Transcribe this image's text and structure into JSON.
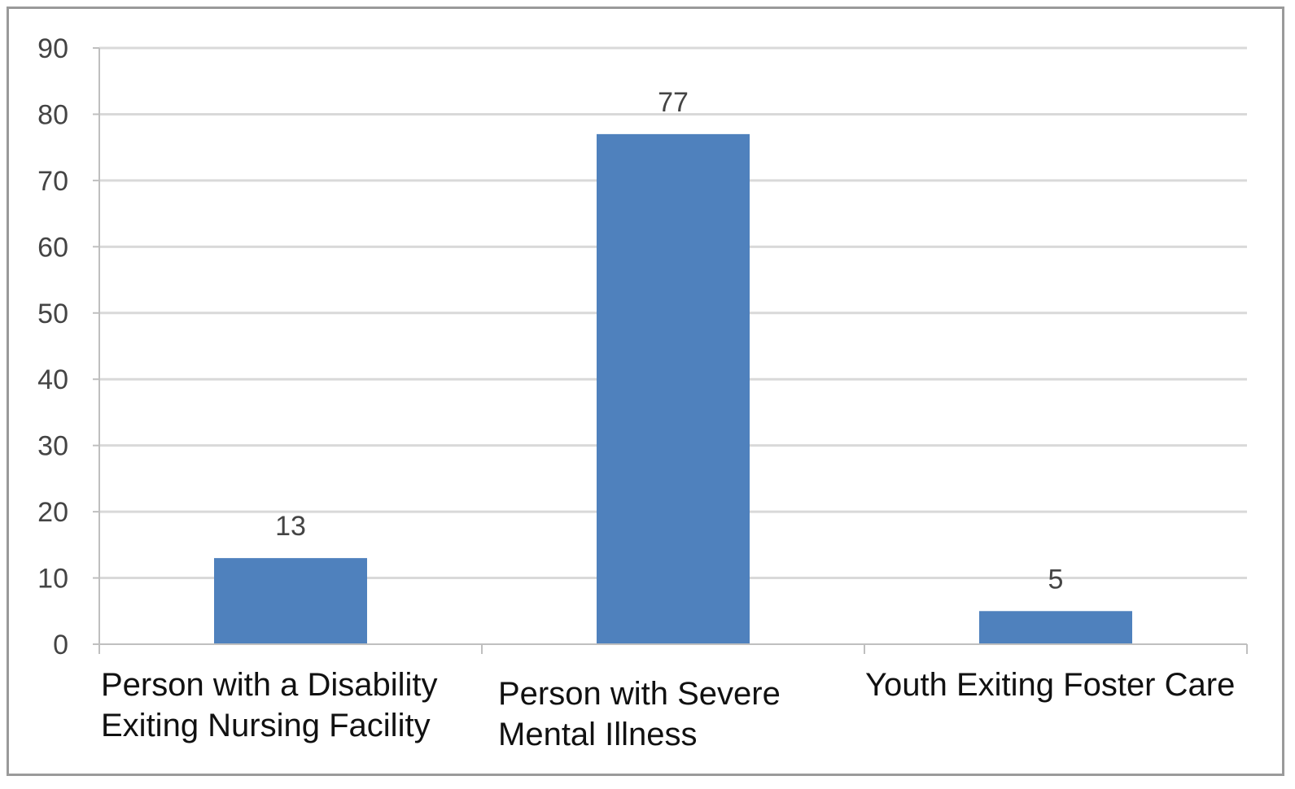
{
  "chart_data": {
    "type": "bar",
    "categories": [
      [
        "Person with a Disability",
        "Exiting Nursing Facility"
      ],
      [
        "Person with Severe",
        "Mental Illness"
      ],
      [
        "Youth Exiting Foster Care"
      ]
    ],
    "values": [
      13,
      77,
      5
    ],
    "data_labels": [
      "13",
      "77",
      "5"
    ],
    "y_ticks": [
      "0",
      "10",
      "20",
      "30",
      "40",
      "50",
      "60",
      "70",
      "80",
      "90"
    ],
    "ylim": [
      0,
      90
    ],
    "grid": true,
    "legend": false,
    "title": "",
    "xlabel": "",
    "ylabel": "",
    "colors": {
      "bar": "#4f81bd",
      "grid": "#d9d9d9",
      "axis": "#bfbfbf",
      "frame": "#9a9a9a"
    }
  }
}
